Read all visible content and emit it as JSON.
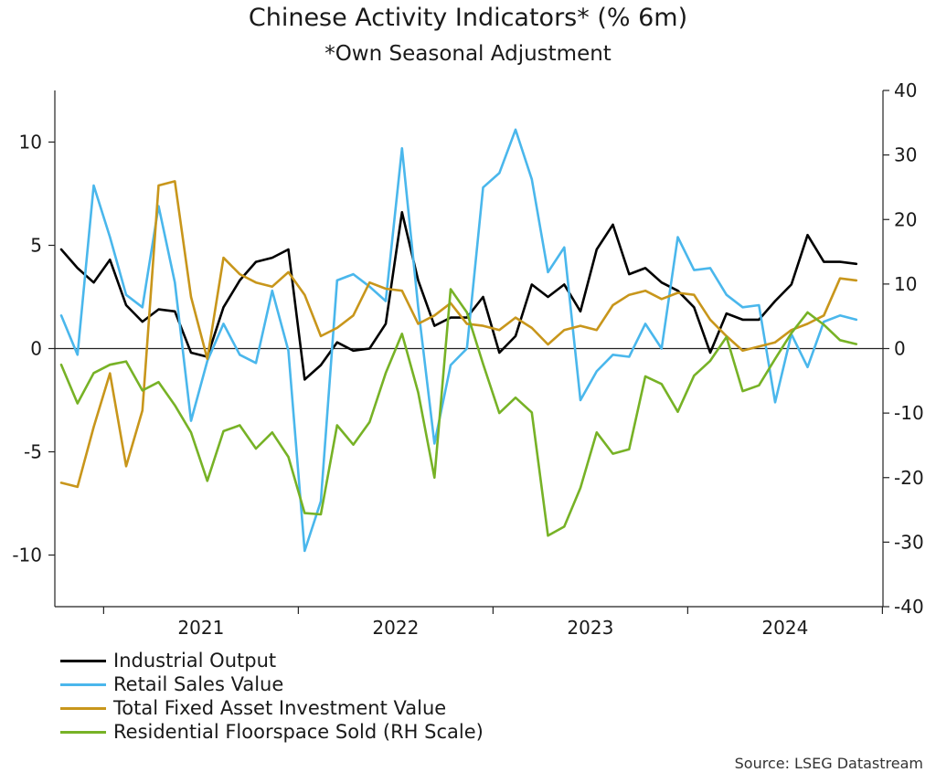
{
  "chart_data": {
    "type": "line",
    "title": "Chinese Activity Indicators* (% 6m)",
    "subtitle": "*Own Seasonal Adjustment",
    "source": "Source: LSEG Datastream",
    "x_start": "2020-10",
    "x_ticks": [
      "2021",
      "2022",
      "2023",
      "2024"
    ],
    "y_left": {
      "min": -12.5,
      "max": 12.5,
      "ticks": [
        10,
        5,
        0,
        -5,
        -10
      ]
    },
    "y_right": {
      "min": -40,
      "max": 40,
      "ticks": [
        40,
        30,
        20,
        10,
        0,
        -10,
        -20,
        -30,
        -40
      ]
    },
    "series": [
      {
        "name": "Industrial Output",
        "color": "#000000",
        "axis": "left",
        "values": [
          4.8,
          3.9,
          3.2,
          4.3,
          2.1,
          1.3,
          1.9,
          1.8,
          -0.2,
          -0.4,
          2.0,
          3.3,
          4.2,
          4.4,
          4.8,
          -1.5,
          -0.8,
          0.3,
          -0.1,
          0.0,
          1.2,
          6.6,
          3.3,
          1.1,
          1.5,
          1.5,
          2.5,
          -0.2,
          0.6,
          3.1,
          2.5,
          3.1,
          1.8,
          4.8,
          6.0,
          3.6,
          3.9,
          3.2,
          2.8,
          2.0,
          -0.2,
          1.7,
          1.4,
          1.4,
          2.3,
          3.1,
          5.5,
          4.2,
          4.2,
          4.1
        ]
      },
      {
        "name": "Retail Sales Value",
        "color": "#4ab7ec",
        "axis": "left",
        "values": [
          1.6,
          -0.3,
          7.9,
          5.4,
          2.6,
          2.0,
          6.9,
          3.2,
          -3.5,
          -0.6,
          1.2,
          -0.3,
          -0.7,
          2.8,
          -0.1,
          -9.8,
          -7.4,
          3.3,
          3.6,
          3.0,
          2.3,
          9.7,
          2.0,
          -4.6,
          -0.8,
          0.0,
          7.8,
          8.5,
          10.6,
          8.2,
          3.7,
          4.9,
          -2.5,
          -1.1,
          -0.3,
          -0.4,
          1.2,
          0.0,
          5.4,
          3.8,
          3.9,
          2.6,
          2.0,
          2.1,
          -2.6,
          0.7,
          -0.9,
          1.3,
          1.6,
          1.4
        ]
      },
      {
        "name": "Total Fixed Asset Investment Value",
        "color": "#c8961b",
        "axis": "left",
        "values": [
          -6.5,
          -6.7,
          -3.8,
          -1.2,
          -5.7,
          -3.0,
          7.9,
          8.1,
          2.5,
          -0.5,
          4.4,
          3.6,
          3.2,
          3.0,
          3.7,
          2.6,
          0.6,
          1.0,
          1.6,
          3.2,
          2.9,
          2.8,
          1.2,
          1.6,
          2.2,
          1.2,
          1.1,
          0.9,
          1.5,
          1.0,
          0.2,
          0.9,
          1.1,
          0.9,
          2.1,
          2.6,
          2.8,
          2.4,
          2.7,
          2.6,
          1.4,
          0.6,
          -0.1,
          0.1,
          0.3,
          0.9,
          1.2,
          1.6,
          3.4,
          3.3
        ]
      },
      {
        "name": "Residential Floorspace Sold (RH Scale)",
        "color": "#77b226",
        "axis": "right",
        "values": [
          -2.5,
          -8.5,
          -3.8,
          -2.5,
          -2.0,
          -6.5,
          -5.2,
          -8.8,
          -13.0,
          -20.5,
          -12.8,
          -11.9,
          -15.5,
          -13.0,
          -16.8,
          -25.5,
          -25.7,
          -11.9,
          -14.9,
          -11.4,
          -3.8,
          2.3,
          -6.8,
          -20.0,
          9.2,
          5.6,
          -2.4,
          -10.0,
          -7.6,
          -9.9,
          -29.0,
          -27.6,
          -21.6,
          -13.0,
          -16.3,
          -15.6,
          -4.3,
          -5.5,
          -9.8,
          -4.2,
          -1.9,
          1.8,
          -6.6,
          -5.7,
          -1.6,
          2.4,
          5.6,
          3.7,
          1.3,
          0.7
        ]
      }
    ]
  }
}
